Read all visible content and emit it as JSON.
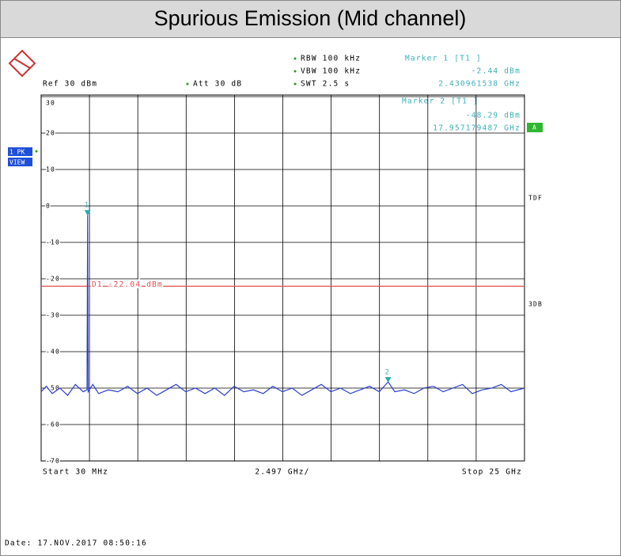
{
  "chart_data": {
    "type": "line",
    "title": "Spurious Emission (Mid channel)",
    "settings": {
      "rbw": "RBW 100 kHz",
      "vbw": "VBW 100 kHz",
      "swt": "SWT 2.5 s",
      "ref": "Ref  30 dBm",
      "att": "Att  30 dB"
    },
    "side_labels": {
      "trace": "1 PK",
      "view": "VIEW",
      "a": "A",
      "tdf": "TDF",
      "db": "3DB"
    },
    "start_label": "Start 30 MHz",
    "span_label": "2.497 GHz/",
    "stop_label": "Stop 25 GHz",
    "date": "Date: 17.NOV.2017  08:50:16",
    "ylim": [
      -70,
      30
    ],
    "yticks": [
      30,
      20,
      10,
      0,
      -10,
      -20,
      -30,
      -40,
      -50,
      -60,
      -70
    ],
    "xlim": [
      0.03,
      25
    ],
    "grid": true,
    "display_line": {
      "label": "D1 -22.04 dBm",
      "value": -22.04,
      "color": "#e05050"
    },
    "markers": [
      {
        "name": "Marker 1 [T1 ]",
        "tag": "1",
        "value": -2.44,
        "value_label": "-2.44 dBm",
        "x": 2.430961538,
        "x_label": "2.430961538 GHz"
      },
      {
        "name": "Marker 2 [T1 ]",
        "tag": "2",
        "value": -48.29,
        "value_label": "-48.29 dBm",
        "x": 17.957179487,
        "x_label": "17.957179487 GHz"
      }
    ],
    "series": [
      {
        "color": "#2b3fd0",
        "x": [
          0.03,
          0.3,
          0.6,
          1.0,
          1.4,
          1.8,
          2.2,
          2.4,
          2.431,
          2.46,
          2.7,
          3.0,
          3.5,
          4.0,
          4.5,
          5.0,
          5.5,
          6.0,
          6.5,
          7.0,
          7.5,
          8.0,
          8.5,
          9.0,
          9.5,
          10.0,
          10.5,
          11.0,
          11.5,
          12.0,
          12.5,
          13.0,
          13.5,
          14.0,
          14.5,
          15.0,
          15.5,
          16.0,
          16.5,
          17.0,
          17.5,
          17.957,
          18.3,
          18.8,
          19.3,
          19.8,
          20.3,
          20.8,
          21.3,
          21.8,
          22.3,
          22.8,
          23.3,
          23.8,
          24.3,
          25.0
        ],
        "values": [
          -51,
          -49.5,
          -51.5,
          -50,
          -52,
          -49,
          -51,
          -50.5,
          -2.44,
          -51,
          -49,
          -51.5,
          -50.5,
          -51,
          -49.5,
          -51.5,
          -50,
          -52,
          -50.5,
          -49,
          -51,
          -50,
          -51.5,
          -50,
          -52,
          -49.5,
          -51,
          -50.5,
          -51.5,
          -49.5,
          -51,
          -50,
          -52,
          -50.5,
          -49,
          -51,
          -50,
          -51.5,
          -50.5,
          -49.5,
          -51,
          -48.29,
          -51,
          -50.5,
          -51.5,
          -50,
          -49.5,
          -51,
          -50,
          -49,
          -51.5,
          -50.5,
          -50,
          -49,
          -51,
          -50
        ]
      }
    ]
  }
}
